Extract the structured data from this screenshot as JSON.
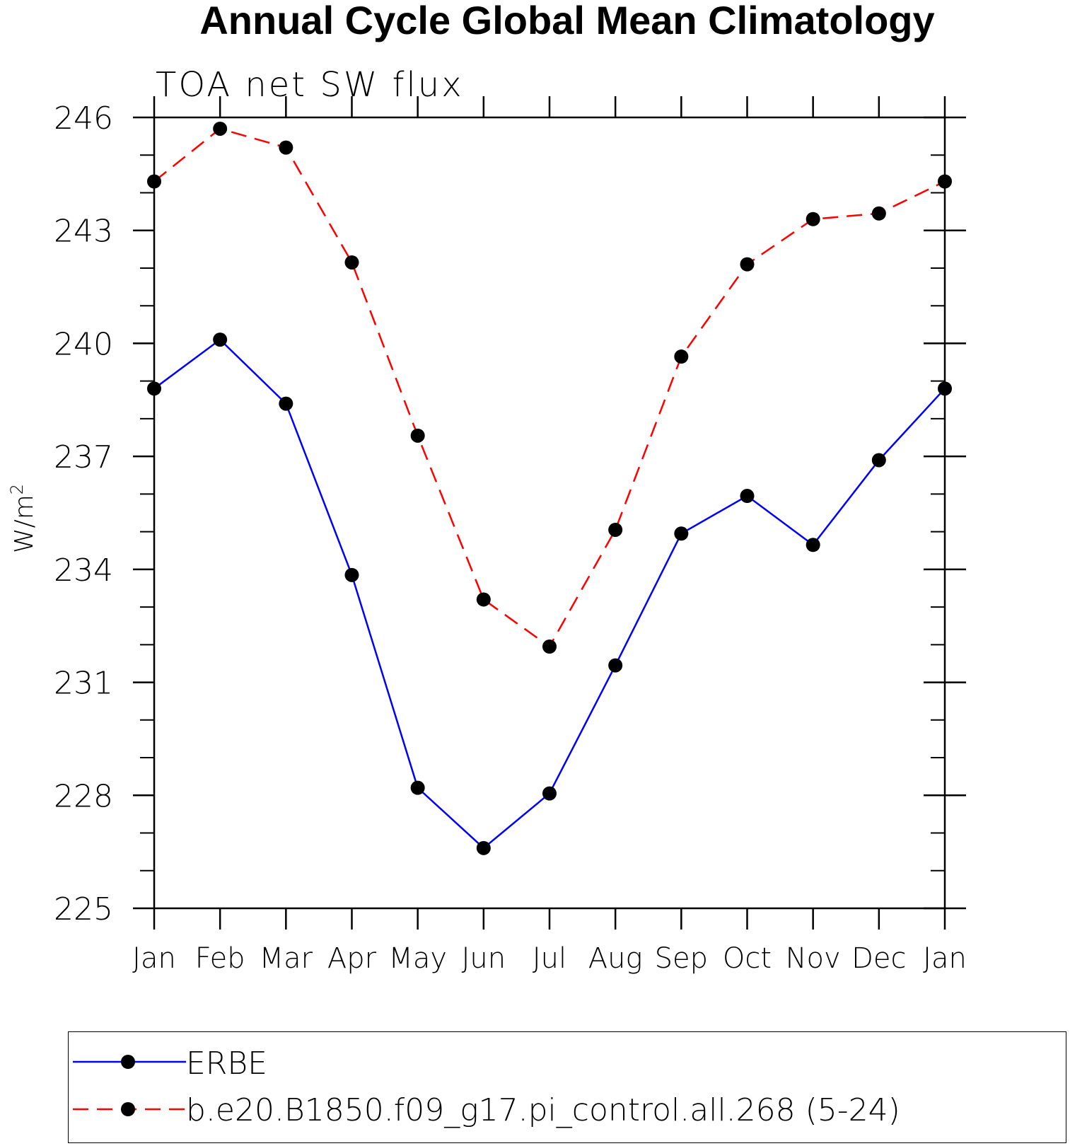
{
  "chart_data": {
    "type": "line",
    "title": "Annual Cycle Global Mean Climatology",
    "subtitle": "TOA net SW flux",
    "xlabel": "",
    "ylabel": "W/m",
    "ylabel_superscript": "2",
    "categories": [
      "Jan",
      "Feb",
      "Mar",
      "Apr",
      "May",
      "Jun",
      "Jul",
      "Aug",
      "Sep",
      "Oct",
      "Nov",
      "Dec",
      "Jan"
    ],
    "ylim": [
      225,
      246
    ],
    "yticks": [
      225,
      228,
      231,
      234,
      237,
      240,
      243,
      246
    ],
    "y_minor_step": 1,
    "grid": false,
    "legend_position": "bottom",
    "series": [
      {
        "name": "ERBE",
        "color": "#0000ff",
        "dash": "solid",
        "marker": "filled-circle",
        "values": [
          238.8,
          240.1,
          238.4,
          233.85,
          228.2,
          226.6,
          228.05,
          231.45,
          234.95,
          235.95,
          234.65,
          236.9,
          238.8
        ]
      },
      {
        "name": "b.e20.B1850.f09_g17.pi_control.all.268 (5-24)",
        "color": "#ff0000",
        "dash": "dashed",
        "marker": "filled-circle",
        "values": [
          244.3,
          245.7,
          245.2,
          242.15,
          237.55,
          233.2,
          231.95,
          235.05,
          239.65,
          242.1,
          243.3,
          243.45,
          244.3
        ]
      }
    ]
  }
}
